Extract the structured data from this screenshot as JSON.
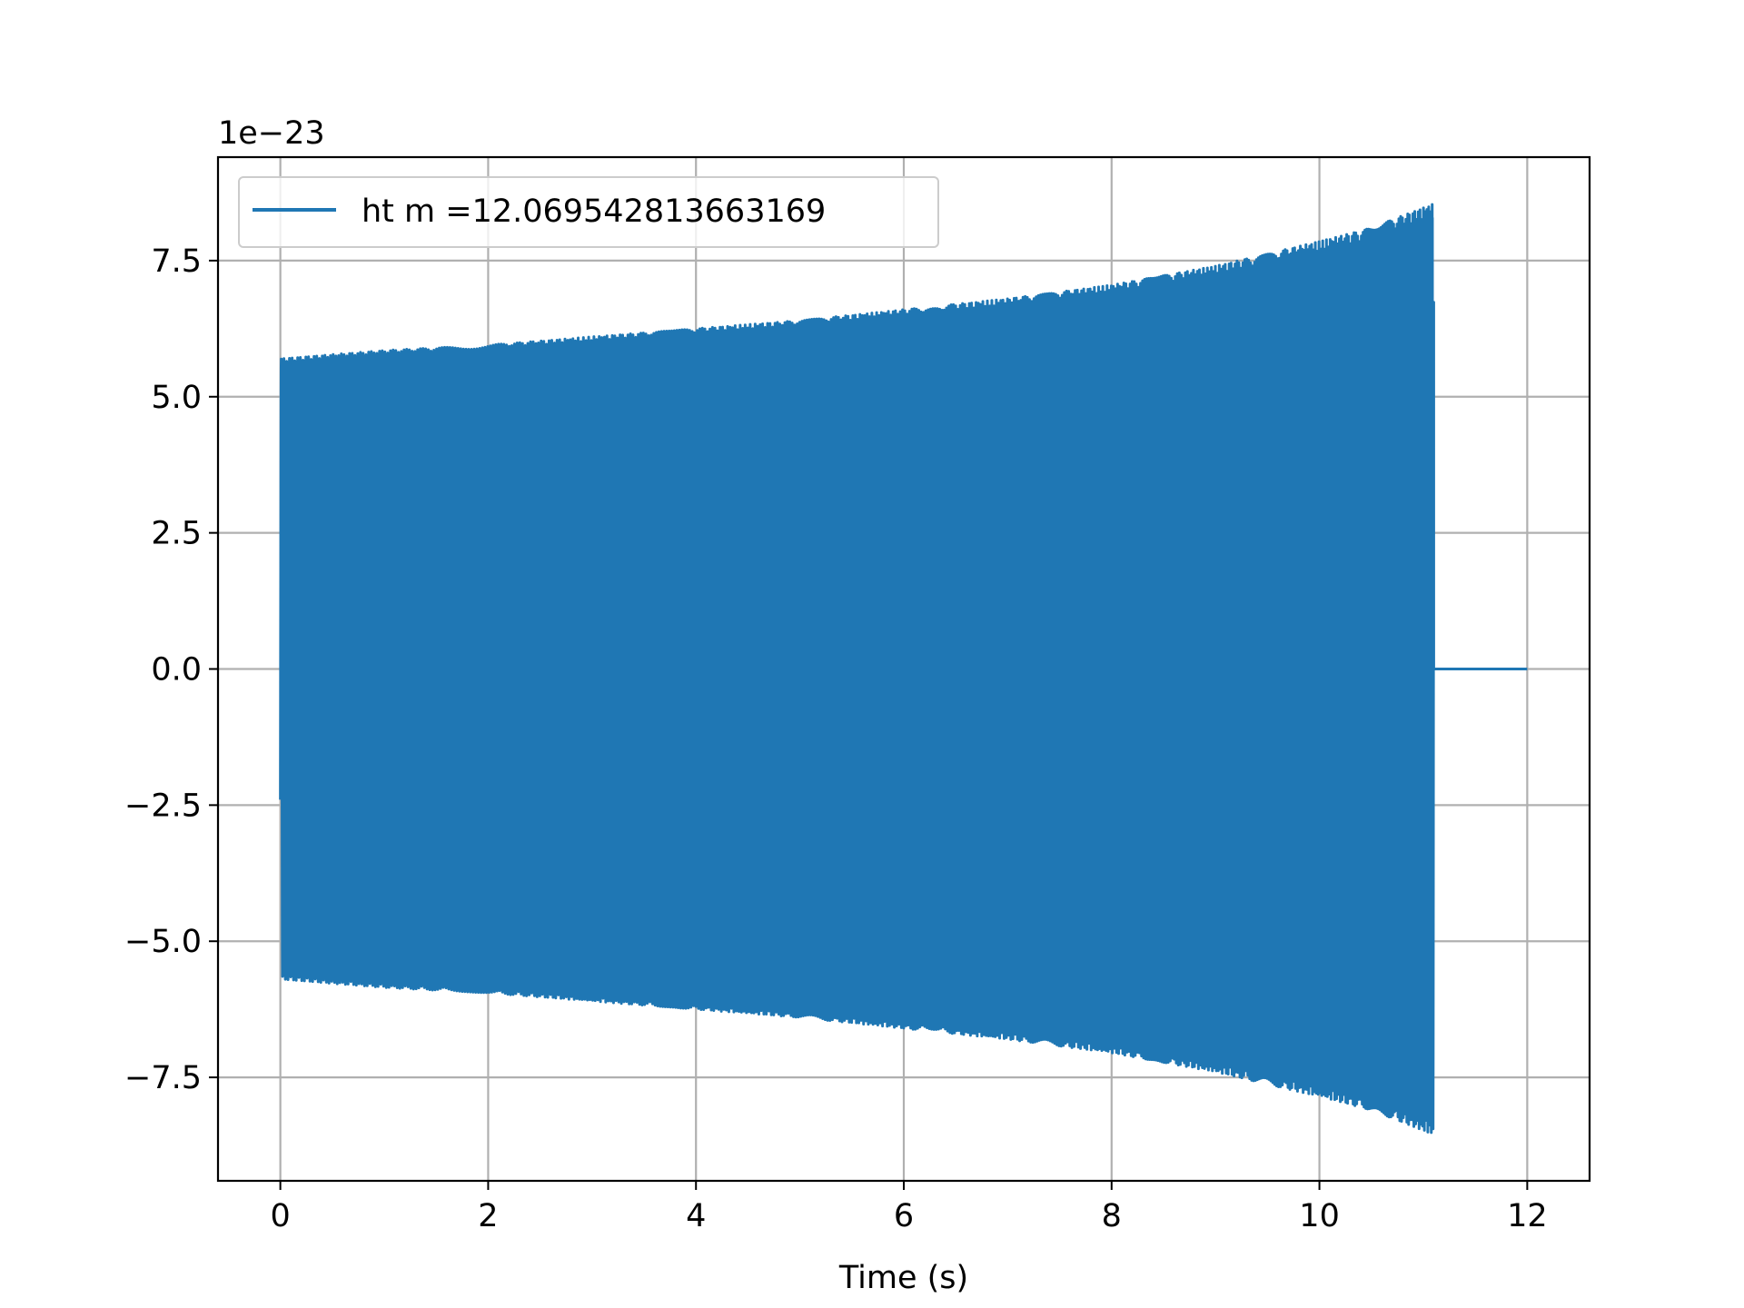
{
  "chart_data": {
    "type": "line",
    "title": "",
    "xlabel": "Time (s)",
    "ylabel": "",
    "y_offset_text": "1e−23",
    "xlim": [
      -0.6,
      12.6
    ],
    "ylim": [
      -9.4,
      9.4
    ],
    "y_scale_factor": 1e-23,
    "grid": true,
    "legend_location": "upper left",
    "x_ticks": [
      0,
      2,
      4,
      6,
      8,
      10,
      12
    ],
    "x_tick_labels": [
      "0",
      "2",
      "4",
      "6",
      "8",
      "10",
      "12"
    ],
    "y_ticks": [
      -7.5,
      -5.0,
      -2.5,
      0.0,
      2.5,
      5.0,
      7.5
    ],
    "y_tick_labels": [
      "−7.5",
      "−5.0",
      "−2.5",
      "0.0",
      "2.5",
      "5.0",
      "7.5"
    ],
    "series": [
      {
        "name": "ht m =12.069542813663169",
        "color": "#1f77b4",
        "description_points": {
          "oscillation_start": 0.0,
          "oscillation_end": 11.1,
          "flat_end": 12.0,
          "envelope_t": [
            0,
            1,
            2,
            3,
            4,
            5,
            6,
            7,
            8,
            9,
            10,
            10.5,
            11.1
          ],
          "envelope_amp": [
            5.7,
            5.85,
            5.95,
            6.1,
            6.25,
            6.4,
            6.6,
            6.8,
            7.05,
            7.4,
            7.85,
            8.1,
            8.55
          ],
          "start_value": -2.4
        }
      }
    ]
  }
}
